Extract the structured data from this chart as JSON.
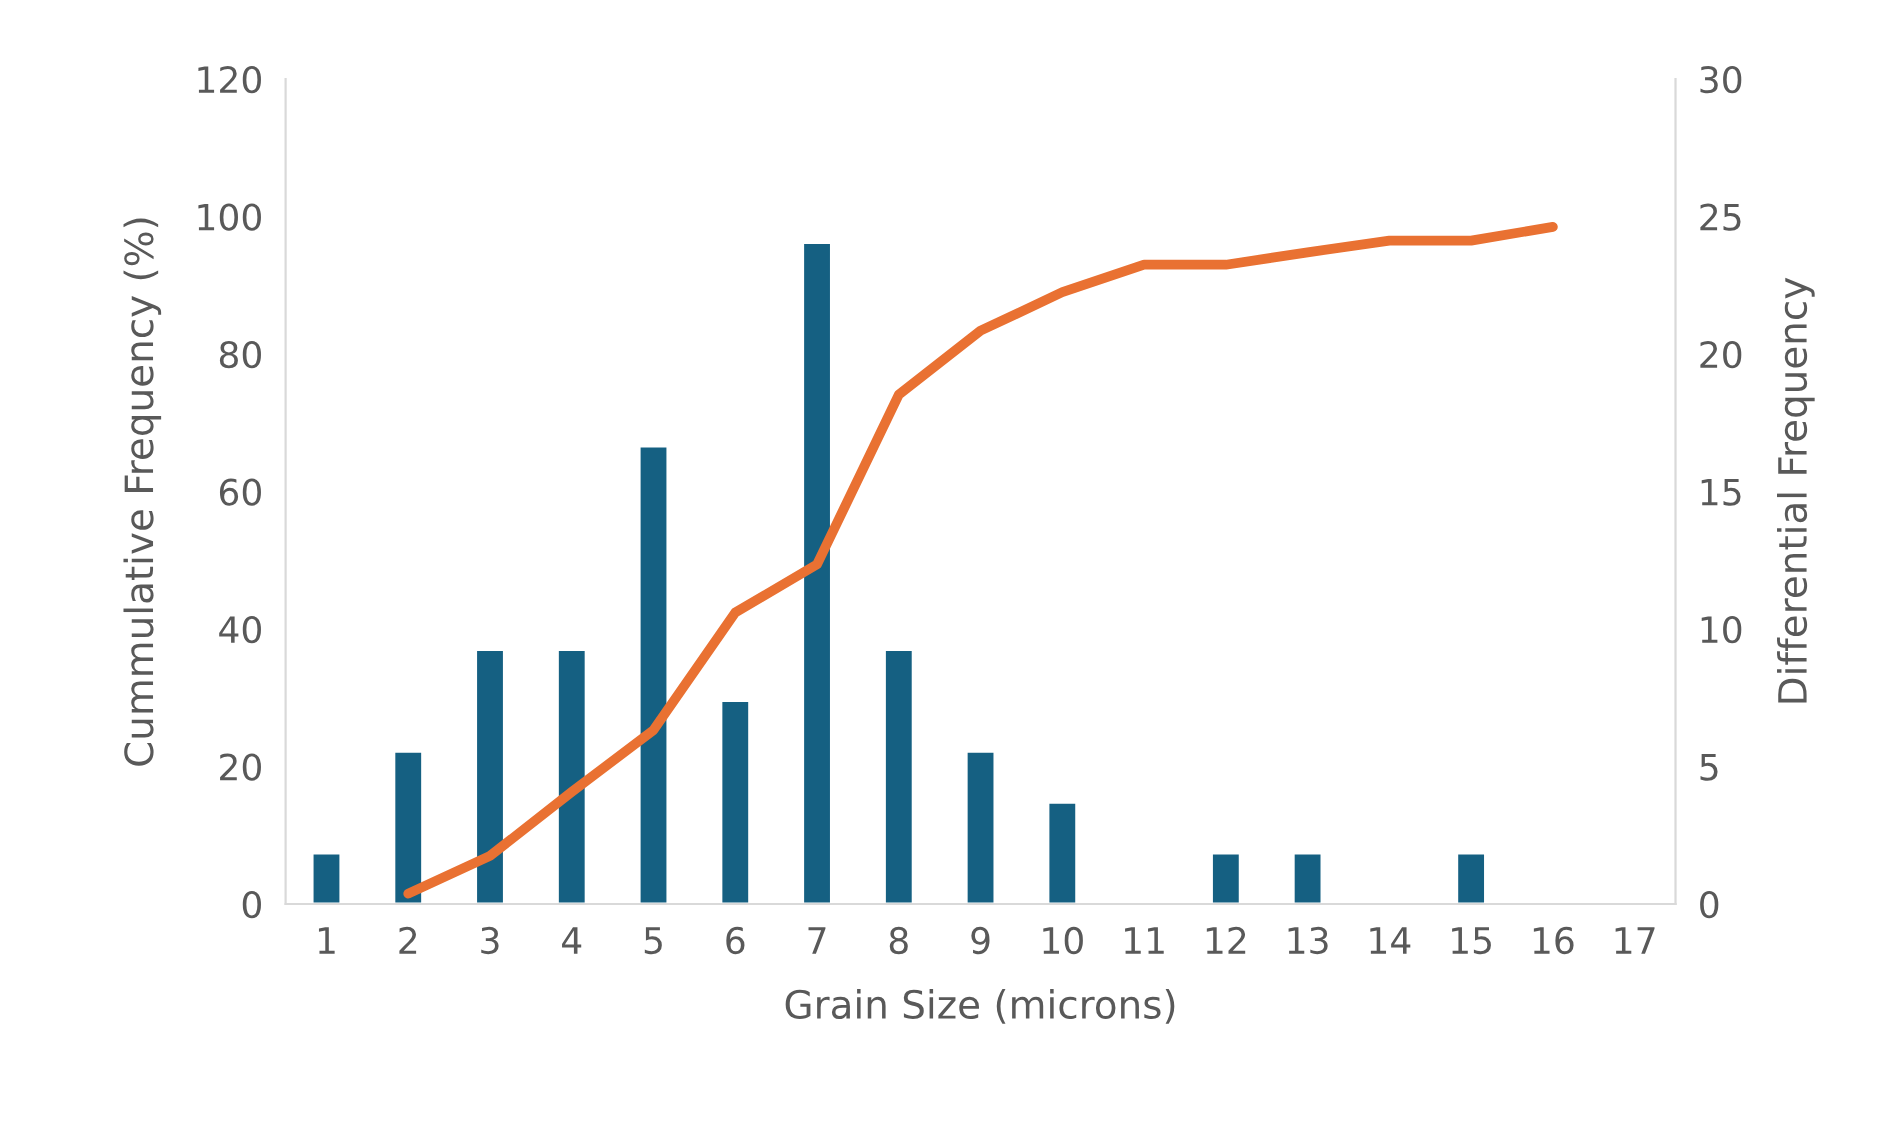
{
  "chart_data": {
    "type": "bar",
    "xlabel": "Grain Size (microns)",
    "ylabel": "Cummulative Frequency (%)",
    "y2label": "Differential Frequency",
    "categories": [
      "1",
      "2",
      "3",
      "4",
      "5",
      "6",
      "7",
      "8",
      "9",
      "10",
      "11",
      "12",
      "13",
      "14",
      "15",
      "16",
      "17"
    ],
    "series": [
      {
        "axis": "y2",
        "color": "#156082",
        "values": [
          1.85,
          5.55,
          9.25,
          9.25,
          16.65,
          7.4,
          24.05,
          9.25,
          5.55,
          3.7,
          null,
          1.85,
          1.85,
          null,
          1.85,
          null,
          null
        ]
      },
      {
        "type": "line",
        "axis": "y",
        "color": "#e97132",
        "values": [
          null,
          1.5,
          7,
          16.3,
          25.3,
          42.4,
          49.4,
          74.1,
          83.4,
          89,
          93,
          93,
          94.8,
          96.5,
          96.5,
          98.5,
          null
        ]
      }
    ],
    "ylim": [
      0,
      120
    ],
    "yticks": [
      0,
      20,
      40,
      60,
      80,
      100,
      120
    ],
    "y2lim": [
      0,
      30
    ],
    "y2ticks": [
      0,
      5,
      10,
      15,
      20,
      25,
      30
    ],
    "grid": false,
    "legend": false
  }
}
